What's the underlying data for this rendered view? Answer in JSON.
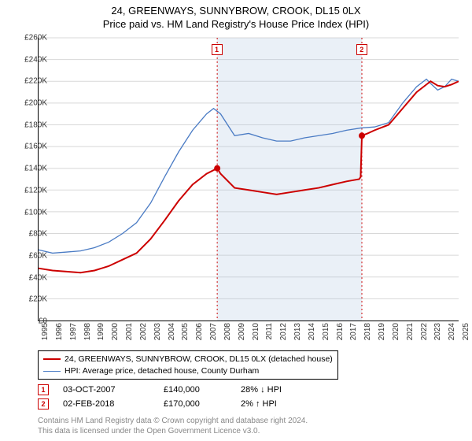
{
  "title": {
    "line1": "24, GREENWAYS, SUNNYBROW, CROOK, DL15 0LX",
    "line2": "Price paid vs. HM Land Registry's House Price Index (HPI)"
  },
  "chart": {
    "type": "line",
    "background_color": "#ffffff",
    "grid_color": "#d8d8d8",
    "y_axis": {
      "min": 0,
      "max": 260000,
      "tick_step": 20000,
      "ticks": [
        "£0",
        "£20K",
        "£40K",
        "£60K",
        "£80K",
        "£100K",
        "£120K",
        "£140K",
        "£160K",
        "£180K",
        "£200K",
        "£220K",
        "£240K",
        "£260K"
      ]
    },
    "x_axis": {
      "min": 1995,
      "max": 2025,
      "ticks": [
        1995,
        1996,
        1997,
        1998,
        1999,
        2000,
        2001,
        2002,
        2003,
        2004,
        2005,
        2006,
        2007,
        2008,
        2009,
        2010,
        2011,
        2012,
        2013,
        2014,
        2015,
        2016,
        2017,
        2018,
        2019,
        2020,
        2021,
        2022,
        2023,
        2024,
        2025
      ]
    },
    "shaded_region": {
      "from": 2007.76,
      "to": 2018.09,
      "color": "rgba(173,195,222,0.25)"
    },
    "markers": [
      {
        "id": "1",
        "year": 2007.76,
        "value": 140000
      },
      {
        "id": "2",
        "year": 2018.09,
        "value": 170000
      }
    ],
    "series": [
      {
        "name": "property",
        "label": "24, GREENWAYS, SUNNYBROW, CROOK, DL15 0LX (detached house)",
        "color": "#cc0000",
        "width": 2,
        "data": [
          [
            1995,
            48000
          ],
          [
            1996,
            46000
          ],
          [
            1997,
            45000
          ],
          [
            1998,
            44000
          ],
          [
            1999,
            46000
          ],
          [
            2000,
            50000
          ],
          [
            2001,
            56000
          ],
          [
            2002,
            62000
          ],
          [
            2003,
            75000
          ],
          [
            2004,
            92000
          ],
          [
            2005,
            110000
          ],
          [
            2006,
            125000
          ],
          [
            2007,
            135000
          ],
          [
            2007.76,
            140000
          ],
          [
            2008,
            135000
          ],
          [
            2009,
            122000
          ],
          [
            2010,
            120000
          ],
          [
            2011,
            118000
          ],
          [
            2012,
            116000
          ],
          [
            2013,
            118000
          ],
          [
            2014,
            120000
          ],
          [
            2015,
            122000
          ],
          [
            2016,
            125000
          ],
          [
            2017,
            128000
          ],
          [
            2017.9,
            130000
          ],
          [
            2018.0,
            132000
          ],
          [
            2018.09,
            170000
          ],
          [
            2018.5,
            172000
          ],
          [
            2019,
            175000
          ],
          [
            2020,
            180000
          ],
          [
            2021,
            195000
          ],
          [
            2022,
            210000
          ],
          [
            2022.5,
            215000
          ],
          [
            2023,
            220000
          ],
          [
            2023.5,
            216000
          ],
          [
            2024,
            215000
          ],
          [
            2024.5,
            217000
          ],
          [
            2025,
            220000
          ]
        ]
      },
      {
        "name": "hpi",
        "label": "HPI: Average price, detached house, County Durham",
        "color": "#4a7bc4",
        "width": 1.3,
        "data": [
          [
            1995,
            65000
          ],
          [
            1996,
            62000
          ],
          [
            1997,
            63000
          ],
          [
            1998,
            64000
          ],
          [
            1999,
            67000
          ],
          [
            2000,
            72000
          ],
          [
            2001,
            80000
          ],
          [
            2002,
            90000
          ],
          [
            2003,
            108000
          ],
          [
            2004,
            132000
          ],
          [
            2005,
            155000
          ],
          [
            2006,
            175000
          ],
          [
            2007,
            190000
          ],
          [
            2007.5,
            195000
          ],
          [
            2008,
            190000
          ],
          [
            2009,
            170000
          ],
          [
            2010,
            172000
          ],
          [
            2011,
            168000
          ],
          [
            2012,
            165000
          ],
          [
            2013,
            165000
          ],
          [
            2014,
            168000
          ],
          [
            2015,
            170000
          ],
          [
            2016,
            172000
          ],
          [
            2017,
            175000
          ],
          [
            2018,
            177000
          ],
          [
            2019,
            178000
          ],
          [
            2020,
            182000
          ],
          [
            2021,
            200000
          ],
          [
            2022,
            215000
          ],
          [
            2022.7,
            222000
          ],
          [
            2023,
            218000
          ],
          [
            2023.5,
            212000
          ],
          [
            2024,
            215000
          ],
          [
            2024.5,
            222000
          ],
          [
            2025,
            220000
          ]
        ]
      }
    ]
  },
  "legend": {
    "items": [
      {
        "color": "#cc0000",
        "label": "24, GREENWAYS, SUNNYBROW, CROOK, DL15 0LX (detached house)"
      },
      {
        "color": "#4a7bc4",
        "label": "HPI: Average price, detached house, County Durham"
      }
    ]
  },
  "events": [
    {
      "id": "1",
      "date": "03-OCT-2007",
      "price": "£140,000",
      "diff": "28% ↓ HPI"
    },
    {
      "id": "2",
      "date": "02-FEB-2018",
      "price": "£170,000",
      "diff": "2% ↑ HPI"
    }
  ],
  "footer": {
    "line1": "Contains HM Land Registry data © Crown copyright and database right 2024.",
    "line2": "This data is licensed under the Open Government Licence v3.0."
  }
}
